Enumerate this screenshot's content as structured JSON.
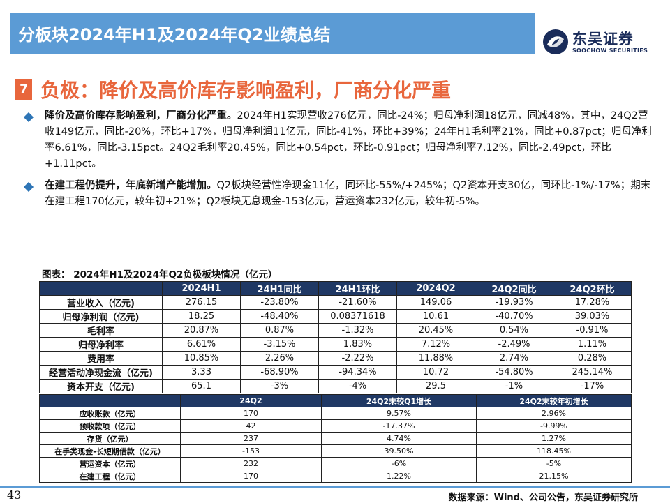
{
  "header": {
    "title": "分板块2024年H1及2024年Q2业绩总结"
  },
  "logo": {
    "cn": "东吴证券",
    "en": "SOOCHOW SECURITIES"
  },
  "section": {
    "number": "7",
    "title": "负极：降价及高价库存影响盈利，厂商分化严重"
  },
  "bullets": [
    {
      "bold": "降价及高价库存影响盈利，厂商分化严重。",
      "text": "2024年H1实现营收276亿元，同比-24%；归母净利润18亿元，同减48%，其中，24Q2营收149亿元，同比-20%，环比+17%，归母净利润11亿元，同比-41%，环比+39%；24年H1毛利率21%，同比+0.87pct；归母净利率6.61%，同比-3.15pct。24Q2毛利率20.45%，同比+0.54pct，环比-0.91pct；归母净利率7.12%，同比-2.49pct，环比+1.11pct。"
    },
    {
      "bold": "在建工程仍提升，年底新增产能增加。",
      "text": "Q2板块经营性净现金11亿，同环比-55%/+245%；Q2资本开支30亿，同环比-1%/-17%；期末在建工程170亿元，较年初+21%；Q2板块无息现金-153亿元，营运资本232亿元，较年初-5%。"
    }
  ],
  "chart_caption": "图表：  2024年H1及2024年Q2负极板块情况（亿元）",
  "table1": {
    "headers": [
      "",
      "2024H1",
      "24H1同比",
      "24H1环比",
      "2024Q2",
      "24Q2同比",
      "24Q2环比"
    ],
    "rows": [
      [
        "营业收入（亿元)",
        "276.15",
        "-23.80%",
        "-21.60%",
        "149.06",
        "-19.93%",
        "17.28%"
      ],
      [
        "归母净利润（亿元)",
        "18.25",
        "-48.40%",
        "0.08371618",
        "10.61",
        "-40.70%",
        "39.03%"
      ],
      [
        "毛利率",
        "20.87%",
        "0.87%",
        "-1.32%",
        "20.45%",
        "0.54%",
        "-0.91%"
      ],
      [
        "归母净利率",
        "6.61%",
        "-3.15%",
        "1.83%",
        "7.12%",
        "-2.49%",
        "1.11%"
      ],
      [
        "费用率",
        "10.85%",
        "2.26%",
        "-2.22%",
        "11.88%",
        "2.74%",
        "0.28%"
      ],
      [
        "经营活动净现金流（亿元)",
        "3.33",
        "-68.90%",
        "-94.34%",
        "10.72",
        "-54.80%",
        "245.14%"
      ],
      [
        "资本开支（亿元)",
        "65.1",
        "-3%",
        "-4%",
        "29.5",
        "-1%",
        "-17%"
      ]
    ]
  },
  "table2": {
    "headers": [
      "",
      "24Q2",
      "24Q2末较Q1增长",
      "24Q2末较年初增长"
    ],
    "rows": [
      [
        "应收账款（亿元）",
        "170",
        "9.57%",
        "2.96%"
      ],
      [
        "预收款项（亿元）",
        "42",
        "-17.37%",
        "-9.99%"
      ],
      [
        "存货（亿元）",
        "237",
        "4.74%",
        "1.27%"
      ],
      [
        "在手类现金-长短期借款（亿元）",
        "-153",
        "39.50%",
        "118.45%"
      ],
      [
        "营运资本（亿元）",
        "232",
        "-6%",
        "-5%"
      ],
      [
        "在建工程（亿元）",
        "170",
        "1.22%",
        "21.15%"
      ]
    ]
  },
  "footer": {
    "page_number": "43",
    "source": "数据来源：Wind、公司公告，东吴证券研究所"
  },
  "colors": {
    "header_bg": "#5b9bd5",
    "accent": "#e8663c",
    "table_header": "#1f3864",
    "bullet": "#2e75b6",
    "logo": "#1a2c5a"
  },
  "icons": {
    "logo_mark": "soochow-logo-icon",
    "bullet": "diamond-bullet-icon"
  }
}
